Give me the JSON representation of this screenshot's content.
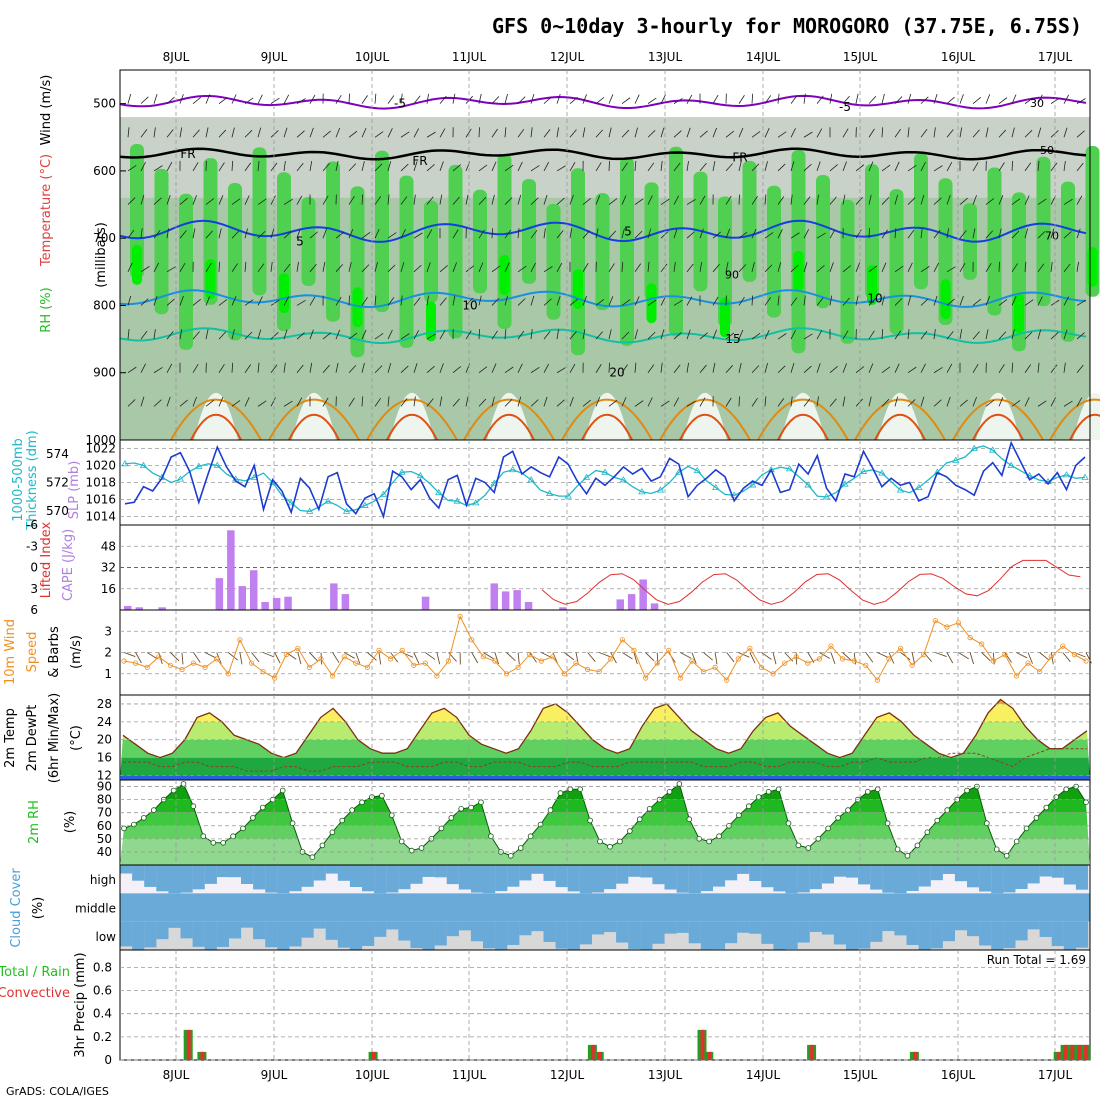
{
  "title": "GFS 0~10day 3-hourly for MOROGORO (37.75E, 6.75S)",
  "footer": "GrADS: COLA/IGES",
  "colors": {
    "rh_light": "#c8d2c8",
    "rh_mid": "#a8c8a8",
    "rh_green": "#50d050",
    "rh_bright": "#00ee00",
    "temp_minus5": "#8000c0",
    "temp_fr": "#000000",
    "temp_5": "#1040e0",
    "temp_10": "#1890e0",
    "temp_15": "#10c0a0",
    "temp_20": "#e08a10",
    "temp_25": "#e05010",
    "thickness": "#1c3cd0",
    "slp": "#20b8c8",
    "cape": "#c080f0",
    "li": "#e03030",
    "wind10": "#f09020",
    "barb": "#6b4e2a",
    "rh2m": "#20c020",
    "cloud": "#6aaad8",
    "cloud_bg": "#f4f0f8",
    "cloud_low_bg": "#d8d8d8",
    "precip_total": "#20a020",
    "precip_conv": "#e03030"
  },
  "dates": [
    "8JUL",
    "9JUL",
    "10JUL",
    "11JUL",
    "12JUL",
    "13JUL",
    "14JUL",
    "15JUL",
    "16JUL",
    "17JUL"
  ],
  "chart_data": [
    {
      "panel": "upper_air",
      "type": "heatmap",
      "ylabel_parts": [
        "RH (%)",
        "Temperature (°C)",
        "Wind (m/s)"
      ],
      "axis_label": "(millibars)",
      "y_ticks": [
        500,
        600,
        700,
        800,
        900,
        1000
      ],
      "ylim": [
        450,
        1000
      ],
      "contour_labels": {
        "minus5": "-5",
        "fr": "FR",
        "t5": "5",
        "t10": "10",
        "t15": "15",
        "t20": "20"
      },
      "rh_labels": [
        "30",
        "50",
        "70",
        "90"
      ]
    },
    {
      "panel": "thickness_slp",
      "type": "line",
      "ylabel_left": "1000-500mb Thickness (dm)",
      "ylabel_right": "SLP (mb)",
      "left_ticks": [
        570,
        572,
        574
      ],
      "right_ticks": [
        1014,
        1016,
        1018,
        1020,
        1022
      ],
      "thickness_range": [
        569,
        575
      ],
      "slp_range": [
        1013,
        1023
      ],
      "x_step_hours": 6,
      "thickness": [
        570.5,
        570.6,
        571.7,
        571.4,
        572.3,
        573.8,
        574.1,
        572.8,
        570.6,
        572.6,
        574.5,
        573.1,
        572.1,
        571.7,
        573.2,
        570.1,
        572.2,
        571.4,
        569.9,
        572.3,
        571.6,
        570.1,
        572.4,
        572.7,
        570.5,
        569.8,
        570.9,
        571.2,
        569.6,
        572.8,
        572.4,
        571.5,
        572.2,
        570.9,
        570.2,
        572.2,
        572.5,
        570.4,
        572.3,
        572.0,
        571.3,
        573.8,
        574.2,
        572.6,
        573.1,
        572.7,
        572.4,
        573.8,
        573.3,
        572.1,
        571.2,
        572.3,
        571.8,
        572.4,
        573.1,
        572.6,
        573.0,
        572.1,
        572.4,
        573.7,
        573.3,
        571.0,
        571.8,
        572.3,
        572.9,
        572.4,
        570.7,
        571.6,
        572.1,
        571.8,
        572.9,
        571.3,
        571.5,
        573.3,
        572.6,
        573.9,
        571.6,
        570.7,
        572.6,
        572.4,
        574.2,
        573.0,
        571.7,
        572.3,
        571.8,
        572.0,
        570.7,
        571.0,
        572.7,
        572.4,
        571.8,
        571.5,
        571.1,
        572.8,
        573.4,
        572.5,
        574.8,
        573.5,
        572.2,
        572.6,
        571.9,
        572.7,
        571.5,
        573.2,
        573.8
      ],
      "slp": [
        1020.2,
        1020.3,
        1020.0,
        1019.1,
        1018.6,
        1018.0,
        1018.4,
        1019.3,
        1019.9,
        1020.2,
        1020.0,
        1019.0,
        1018.4,
        1018.2,
        1018.6,
        1019.1,
        1018.0,
        1016.5,
        1015.6,
        1014.7,
        1014.6,
        1015.1,
        1015.8,
        1015.3,
        1014.6,
        1014.8,
        1015.3,
        1015.8,
        1016.6,
        1018.0,
        1019.2,
        1019.3,
        1018.8,
        1017.9,
        1016.8,
        1015.9,
        1015.8,
        1015.3,
        1015.6,
        1016.5,
        1017.9,
        1019.2,
        1019.5,
        1019.1,
        1018.3,
        1017.1,
        1016.7,
        1016.4,
        1016.4,
        1017.6,
        1018.6,
        1019.4,
        1019.2,
        1018.6,
        1018.3,
        1017.5,
        1016.9,
        1016.7,
        1017.1,
        1018.0,
        1019.2,
        1019.9,
        1019.4,
        1018.2,
        1017.4,
        1016.6,
        1016.5,
        1017.0,
        1017.7,
        1018.9,
        1019.5,
        1019.8,
        1019.6,
        1018.7,
        1017.7,
        1016.4,
        1016.3,
        1016.8,
        1017.8,
        1018.5,
        1019.3,
        1019.5,
        1019.1,
        1018.1,
        1017.1,
        1016.8,
        1017.4,
        1018.3,
        1019.2,
        1020.3,
        1020.6,
        1021.0,
        1022.0,
        1022.3,
        1021.8,
        1020.8,
        1020.0,
        1019.4,
        1018.8,
        1018.3,
        1018.1,
        1018.6,
        1018.9,
        1018.5,
        1018.6
      ]
    },
    {
      "panel": "cape_li",
      "type": "bar",
      "ylabel_left": "Lifted Index",
      "ylabel_right": "CAPE (J/kg)",
      "left_ticks": [
        -6,
        -3,
        0,
        3,
        6
      ],
      "right_ticks": [
        16,
        32,
        48
      ],
      "li_range": [
        -6,
        6
      ],
      "cape_range": [
        0,
        64
      ],
      "cape": [
        3,
        2,
        0,
        2,
        0,
        0,
        0,
        0,
        24,
        60,
        18,
        30,
        6,
        9,
        10,
        0,
        0,
        0,
        20,
        12,
        0,
        0,
        0,
        0,
        0,
        0,
        10,
        0,
        0,
        0,
        0,
        0,
        20,
        14,
        15,
        6,
        0,
        0,
        2,
        0,
        0,
        0,
        0,
        8,
        12,
        23,
        5,
        0,
        0,
        0,
        0,
        0,
        0,
        0,
        0,
        0,
        0,
        0,
        0,
        0,
        0,
        0,
        0,
        0,
        0,
        0,
        0,
        0,
        0,
        0,
        0,
        0,
        0,
        0,
        0,
        0,
        0,
        0,
        0,
        0,
        0,
        0,
        0,
        0
      ],
      "cape_spaced": true
    },
    {
      "panel": "wind10m",
      "type": "line",
      "ylabel": "10m Wind Speed (m/s) & Barbs",
      "ylabel_parts": [
        "10m Wind",
        "Speed",
        "& Barbs"
      ],
      "ylabel_unit": "(m/s)",
      "y_ticks": [
        1,
        2,
        3
      ],
      "ylim": [
        0,
        4
      ],
      "speed": [
        1.6,
        1.5,
        1.3,
        1.8,
        1.4,
        1.2,
        1.5,
        1.3,
        1.7,
        1.0,
        2.6,
        1.5,
        1.1,
        0.8,
        1.9,
        2.2,
        1.3,
        1.7,
        0.9,
        1.8,
        1.5,
        1.3,
        2.1,
        1.7,
        2.1,
        1.4,
        1.5,
        0.9,
        1.6,
        3.7,
        2.6,
        1.8,
        1.6,
        1.0,
        1.3,
        1.9,
        1.6,
        1.8,
        1.0,
        1.5,
        1.2,
        1.1,
        1.7,
        2.6,
        2.1,
        0.8,
        1.5,
        2.1,
        0.8,
        1.6,
        1.1,
        1.3,
        0.7,
        1.7,
        2.2,
        1.3,
        1.0,
        1.5,
        1.8,
        1.5,
        1.7,
        2.3,
        1.7,
        1.6,
        1.4,
        0.7,
        1.7,
        2.2,
        1.4,
        1.9,
        3.5,
        3.2,
        3.4,
        2.7,
        2.4,
        1.6,
        1.9,
        0.9,
        1.5,
        1.1,
        1.8,
        2.3,
        1.9,
        1.6
      ]
    },
    {
      "panel": "temp2m",
      "type": "area",
      "ylabel_parts": [
        "2m Temp",
        "2m DewPt",
        "(6hr Min/Max)"
      ],
      "ylabel_unit": "(°C)",
      "y_ticks": [
        12,
        16,
        20,
        24,
        28
      ],
      "ylim": [
        11,
        30
      ],
      "temp": [
        21,
        19,
        17,
        16,
        17,
        20,
        25,
        26,
        24,
        21,
        20,
        19,
        17,
        16,
        17,
        21,
        25,
        27,
        24,
        20,
        18,
        17,
        17,
        18,
        22,
        26,
        27,
        25,
        21,
        19,
        18,
        17,
        18,
        22,
        27,
        28,
        26,
        23,
        20,
        18,
        17,
        18,
        23,
        27,
        28,
        25,
        22,
        20,
        18,
        17,
        18,
        22,
        25,
        26,
        23,
        21,
        19,
        17,
        16,
        17,
        21,
        25,
        26,
        24,
        21,
        19,
        17,
        16,
        17,
        21,
        26,
        29,
        27,
        23,
        20,
        18,
        18,
        20,
        22
      ],
      "dewpoint": [
        15,
        15,
        15,
        14,
        14,
        15,
        15,
        14,
        14,
        14,
        13,
        13,
        13,
        14,
        14,
        13,
        13,
        14,
        14,
        14,
        15,
        15,
        15,
        14,
        14,
        14,
        15,
        15,
        14,
        14,
        15,
        15,
        15,
        14,
        14,
        14,
        15,
        15,
        14,
        14,
        14,
        15,
        15,
        15,
        15,
        15,
        15,
        14,
        14,
        14,
        15,
        15,
        14,
        14,
        15,
        15,
        15,
        14,
        14,
        15,
        15,
        16,
        15,
        15,
        15,
        16,
        16,
        17,
        17,
        17,
        16,
        15,
        14,
        16,
        17,
        18,
        18,
        18,
        18
      ]
    },
    {
      "panel": "rh2m",
      "type": "area",
      "ylabel": "2m RH",
      "ylabel_unit": "(%)",
      "y_ticks": [
        40,
        50,
        60,
        70,
        80,
        90
      ],
      "ylim": [
        30,
        95
      ],
      "rh": [
        58,
        61,
        66,
        72,
        80,
        87,
        92,
        75,
        52,
        47,
        47,
        52,
        58,
        66,
        74,
        80,
        87,
        62,
        40,
        36,
        45,
        55,
        64,
        72,
        78,
        82,
        83,
        68,
        48,
        41,
        43,
        50,
        58,
        66,
        73,
        74,
        78,
        52,
        40,
        37,
        43,
        52,
        61,
        72,
        85,
        88,
        88,
        64,
        48,
        44,
        48,
        56,
        65,
        73,
        80,
        86,
        92,
        65,
        50,
        48,
        52,
        60,
        68,
        75,
        82,
        86,
        88,
        62,
        45,
        43,
        50,
        58,
        66,
        72,
        80,
        86,
        88,
        62,
        42,
        37,
        45,
        55,
        64,
        72,
        80,
        87,
        90,
        62,
        42,
        37,
        48,
        58,
        66,
        74,
        82,
        88,
        90,
        78
      ]
    },
    {
      "panel": "cloud",
      "type": "area",
      "ylabel": "Cloud Cover",
      "ylabel_unit": "(%)",
      "levels": [
        "high",
        "middle",
        "low"
      ]
    },
    {
      "panel": "precip",
      "type": "bar",
      "ylabel_parts": [
        "3hr Precip (mm)",
        "Total / Rain",
        "Convective"
      ],
      "run_total": "Run Total = 1.69",
      "y_ticks": [
        0,
        0.2,
        0.4,
        0.6,
        0.8
      ],
      "ylim": [
        0,
        0.95
      ],
      "total": [
        0,
        0,
        0,
        0,
        0,
        0,
        0,
        0,
        0,
        0.26,
        0,
        0.07,
        0,
        0,
        0,
        0,
        0,
        0,
        0,
        0,
        0,
        0,
        0,
        0,
        0,
        0,
        0,
        0,
        0,
        0,
        0,
        0,
        0,
        0,
        0,
        0,
        0.07,
        0,
        0,
        0,
        0,
        0,
        0,
        0,
        0,
        0,
        0,
        0,
        0,
        0,
        0,
        0,
        0,
        0,
        0,
        0,
        0,
        0,
        0,
        0,
        0,
        0,
        0,
        0,
        0,
        0,
        0,
        0,
        0.13,
        0.07,
        0,
        0,
        0,
        0,
        0,
        0,
        0,
        0,
        0,
        0,
        0,
        0,
        0,
        0,
        0.26,
        0.07,
        0,
        0,
        0,
        0,
        0,
        0,
        0,
        0,
        0,
        0,
        0,
        0,
        0,
        0,
        0.13,
        0,
        0,
        0,
        0,
        0,
        0,
        0,
        0,
        0,
        0,
        0,
        0,
        0,
        0,
        0.07,
        0,
        0,
        0,
        0,
        0,
        0,
        0,
        0,
        0,
        0,
        0,
        0,
        0,
        0,
        0,
        0,
        0,
        0,
        0,
        0,
        0.07,
        0.13,
        0.13,
        0.13,
        0.13
      ]
    }
  ]
}
